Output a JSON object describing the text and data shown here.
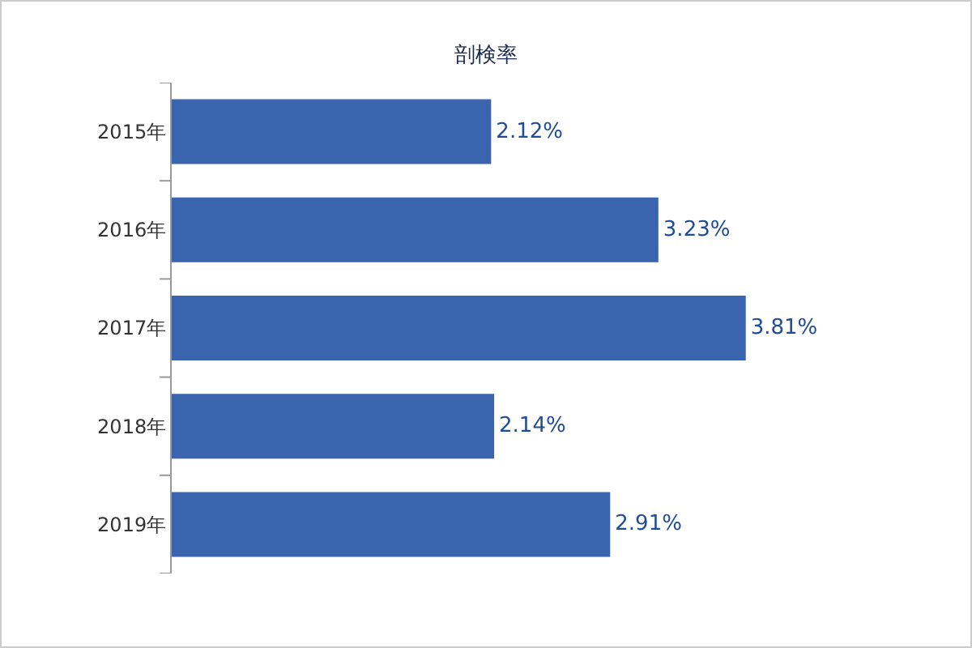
{
  "chart_data": {
    "type": "bar",
    "title": "剖検率",
    "orientation": "horizontal",
    "categories": [
      "2015年",
      "2016年",
      "2017年",
      "2018年",
      "2019年"
    ],
    "values": [
      2.12,
      3.23,
      3.81,
      2.14,
      2.91
    ],
    "value_labels": [
      "2.12%",
      "3.23%",
      "3.81%",
      "2.14%",
      "2.91%"
    ],
    "color": "#3a64ae",
    "tick_labels": "y"
  }
}
